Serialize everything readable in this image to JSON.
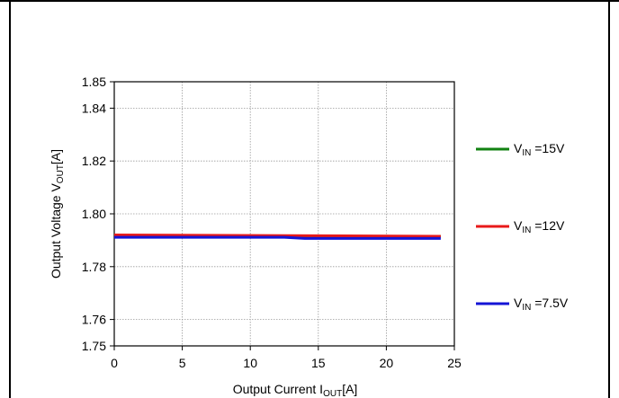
{
  "chart_data": {
    "type": "line",
    "xlabel": {
      "prefix": "Output Current I",
      "sub": "OUT",
      "suffix": "[A]"
    },
    "ylabel": {
      "prefix": "Output Voltage V",
      "sub": "OUT",
      "suffix": "[A]"
    },
    "xlim": [
      0,
      25
    ],
    "ylim": [
      1.75,
      1.85
    ],
    "x_ticks": [
      0,
      5,
      10,
      15,
      20,
      25
    ],
    "y_ticks": [
      1.75,
      1.76,
      1.78,
      1.8,
      1.82,
      1.84,
      1.85
    ],
    "x_tick_labels": [
      "0",
      "5",
      "10",
      "15",
      "20",
      "25"
    ],
    "y_tick_labels": [
      "1.75",
      "1.76",
      "1.78",
      "1.80",
      "1.82",
      "1.84",
      "1.85"
    ],
    "grid": true,
    "legend_position": "right",
    "series": [
      {
        "name": {
          "prefix": "V",
          "sub": "IN",
          "suffix": " =15V"
        },
        "color": "#128212",
        "x": [
          0,
          24
        ],
        "y": [
          1.7915,
          1.7915
        ]
      },
      {
        "name": {
          "prefix": "V",
          "sub": "IN",
          "suffix": " =12V"
        },
        "color": "#e81919",
        "x": [
          0,
          24
        ],
        "y": [
          1.792,
          1.7915
        ]
      },
      {
        "name": {
          "prefix": "V",
          "sub": "IN",
          "suffix": " =7.5V"
        },
        "color": "#1414d6",
        "x": [
          0,
          12.5,
          14,
          24
        ],
        "y": [
          1.7911,
          1.7911,
          1.7907,
          1.7907
        ]
      }
    ]
  }
}
